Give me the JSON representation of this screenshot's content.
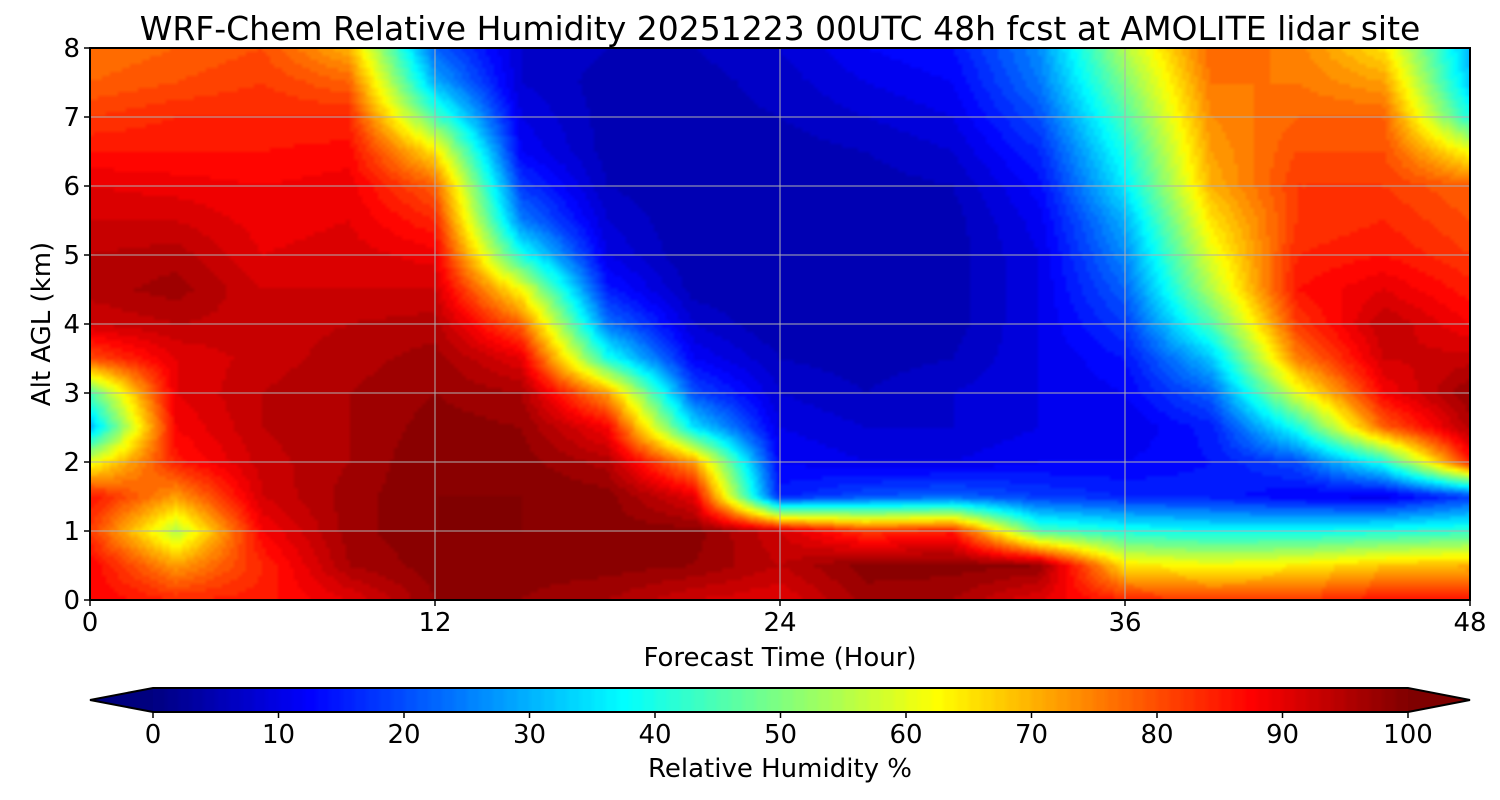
{
  "chart_data": {
    "type": "heatmap",
    "title": "WRF-Chem Relative Humidity 20251223 00UTC 48h fcst at AMOLITE lidar site",
    "xlabel": "Forecast Time (Hour)",
    "ylabel": "Alt AGL (km)",
    "xlim": [
      0,
      48
    ],
    "ylim": [
      0,
      8
    ],
    "xticks": [
      0,
      12,
      24,
      36,
      48
    ],
    "yticks": [
      0,
      1,
      2,
      3,
      4,
      5,
      6,
      7,
      8
    ],
    "grid": true,
    "colormap": "jet",
    "x": [
      0,
      3,
      6,
      9,
      12,
      15,
      18,
      21,
      24,
      27,
      30,
      33,
      36,
      39,
      42,
      45,
      48
    ],
    "y": [
      0,
      0.5,
      1,
      1.5,
      2,
      2.5,
      3,
      3.5,
      4,
      4.5,
      5,
      5.5,
      6,
      6.5,
      7,
      7.5,
      8
    ],
    "values": [
      [
        88,
        84,
        85,
        90,
        98,
        98,
        96,
        92,
        90,
        97,
        96,
        90,
        84,
        82,
        82,
        86,
        86
      ],
      [
        88,
        72,
        84,
        96,
        99,
        99,
        99,
        98,
        94,
        99,
        99,
        98,
        65,
        62,
        64,
        68,
        70
      ],
      [
        82,
        55,
        88,
        97,
        100,
        100,
        99,
        99,
        92,
        82,
        85,
        45,
        40,
        38,
        38,
        40,
        42
      ],
      [
        86,
        72,
        92,
        97,
        100,
        100,
        99,
        90,
        15,
        20,
        22,
        18,
        16,
        15,
        12,
        10,
        18
      ],
      [
        60,
        85,
        93,
        96,
        100,
        99,
        95,
        72,
        12,
        10,
        10,
        12,
        12,
        14,
        20,
        40,
        85
      ],
      [
        30,
        88,
        94,
        96,
        99,
        98,
        88,
        35,
        10,
        8,
        8,
        10,
        10,
        15,
        40,
        78,
        95
      ],
      [
        45,
        90,
        94,
        96,
        98,
        96,
        72,
        20,
        8,
        6,
        8,
        10,
        12,
        22,
        60,
        88,
        98
      ],
      [
        80,
        90,
        93,
        95,
        97,
        90,
        40,
        12,
        6,
        5,
        6,
        10,
        14,
        32,
        75,
        92,
        93
      ],
      [
        92,
        94,
        93,
        94,
        95,
        78,
        24,
        8,
        4,
        4,
        5,
        10,
        18,
        45,
        82,
        94,
        88
      ],
      [
        95,
        97,
        92,
        92,
        92,
        62,
        15,
        5,
        4,
        4,
        5,
        10,
        22,
        55,
        86,
        90,
        85
      ],
      [
        94,
        95,
        90,
        91,
        89,
        40,
        10,
        4,
        4,
        4,
        5,
        10,
        26,
        60,
        84,
        86,
        82
      ],
      [
        92,
        92,
        89,
        90,
        84,
        25,
        8,
        4,
        4,
        4,
        5,
        11,
        30,
        65,
        82,
        84,
        80
      ],
      [
        90,
        89,
        88,
        89,
        78,
        18,
        6,
        4,
        4,
        5,
        6,
        13,
        36,
        70,
        82,
        82,
        78
      ],
      [
        86,
        86,
        86,
        87,
        65,
        12,
        5,
        4,
        5,
        6,
        8,
        16,
        40,
        72,
        80,
        80,
        62
      ],
      [
        82,
        84,
        84,
        84,
        45,
        10,
        5,
        5,
        6,
        8,
        10,
        20,
        45,
        74,
        78,
        78,
        40
      ],
      [
        78,
        80,
        82,
        78,
        30,
        8,
        5,
        5,
        7,
        10,
        12,
        24,
        50,
        76,
        76,
        72,
        32
      ],
      [
        76,
        78,
        80,
        70,
        22,
        8,
        6,
        6,
        8,
        12,
        14,
        26,
        55,
        78,
        75,
        65,
        30
      ]
    ],
    "colorbar": {
      "label": "Relative Humidity %",
      "range": [
        0,
        100
      ],
      "extend": "both",
      "ticks": [
        0,
        10,
        20,
        30,
        40,
        50,
        60,
        70,
        80,
        90,
        100
      ]
    }
  }
}
